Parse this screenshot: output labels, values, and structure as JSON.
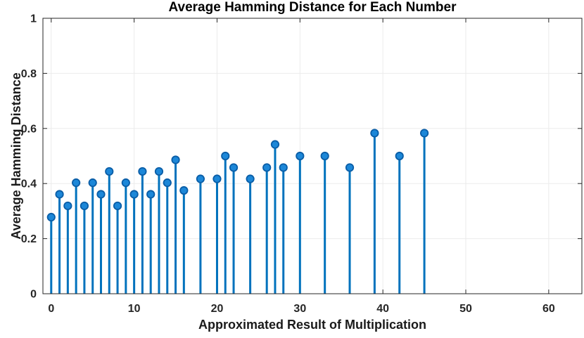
{
  "chart_data": {
    "type": "stem",
    "title": "Average Hamming Distance for Each Number",
    "xlabel": "Approximated Result of Multiplication",
    "ylabel": "Average Hamming Distance",
    "x": [
      0,
      1,
      2,
      3,
      4,
      5,
      6,
      7,
      8,
      9,
      10,
      11,
      12,
      13,
      14,
      15,
      16,
      18,
      20,
      21,
      22,
      24,
      26,
      27,
      28,
      30,
      33,
      36,
      39,
      42,
      45
    ],
    "values": [
      0.278,
      0.361,
      0.319,
      0.403,
      0.319,
      0.403,
      0.361,
      0.444,
      0.319,
      0.403,
      0.361,
      0.444,
      0.361,
      0.444,
      0.403,
      0.486,
      0.375,
      0.417,
      0.417,
      0.5,
      0.458,
      0.417,
      0.458,
      0.542,
      0.458,
      0.5,
      0.5,
      0.458,
      0.583,
      0.5,
      0.583
    ],
    "xlim": [
      -1,
      64
    ],
    "ylim": [
      0,
      1
    ],
    "xticks": [
      0,
      10,
      20,
      30,
      40,
      50,
      60
    ],
    "yticks": [
      0,
      0.2,
      0.4,
      0.6,
      0.8,
      1
    ],
    "grid": true,
    "legend_position": "none",
    "colors": {
      "stem": "#0072BD",
      "marker_fill": "#1C87D8",
      "marker_edge": "#0A5DA6",
      "grid": "#EBEBEB",
      "axis": "#262626",
      "background": "#FFFFFF"
    }
  }
}
